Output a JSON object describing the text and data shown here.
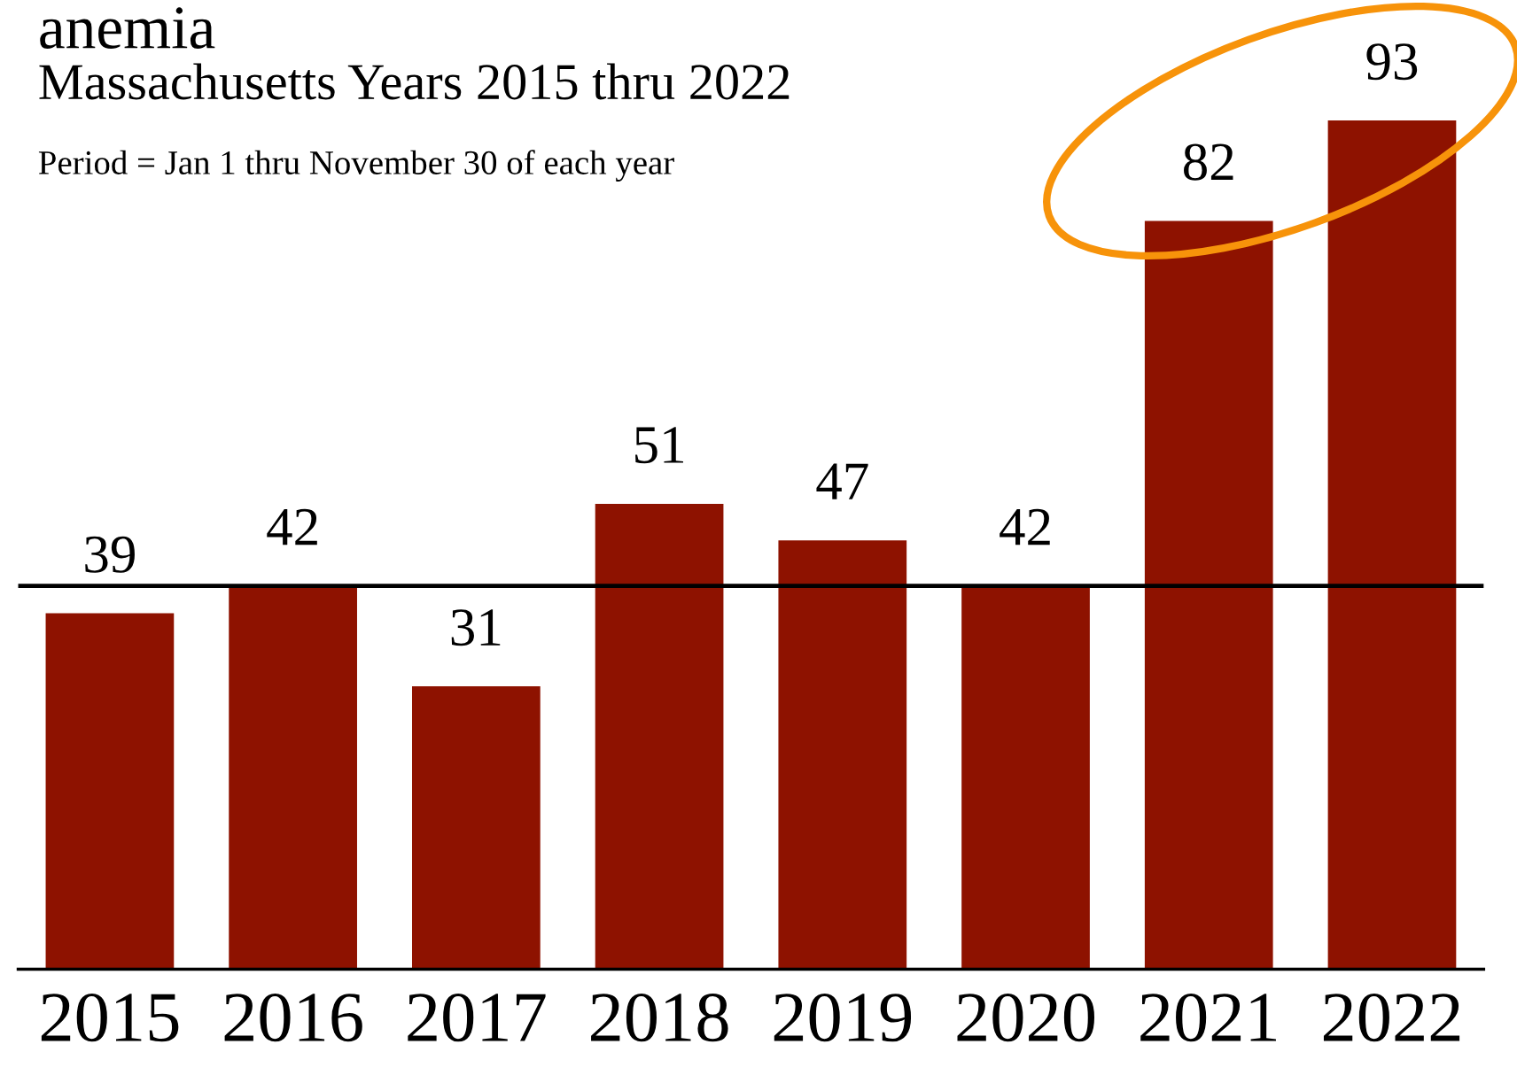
{
  "chart_data": {
    "type": "bar",
    "title": "anemia",
    "subtitle": "Massachusetts Years 2015 thru 2022",
    "annotations": [
      "Period = Jan 1 thru November 30 of each year"
    ],
    "categories": [
      "2015",
      "2016",
      "2017",
      "2018",
      "2019",
      "2020",
      "2021",
      "2022"
    ],
    "values": [
      39,
      42,
      31,
      51,
      47,
      42,
      82,
      93
    ],
    "color": "#8e1200",
    "data_labels": true,
    "ref_lines": [
      {
        "axis": "y",
        "value": 42,
        "color": "#000000"
      }
    ],
    "grid": false,
    "legend": false
  }
}
